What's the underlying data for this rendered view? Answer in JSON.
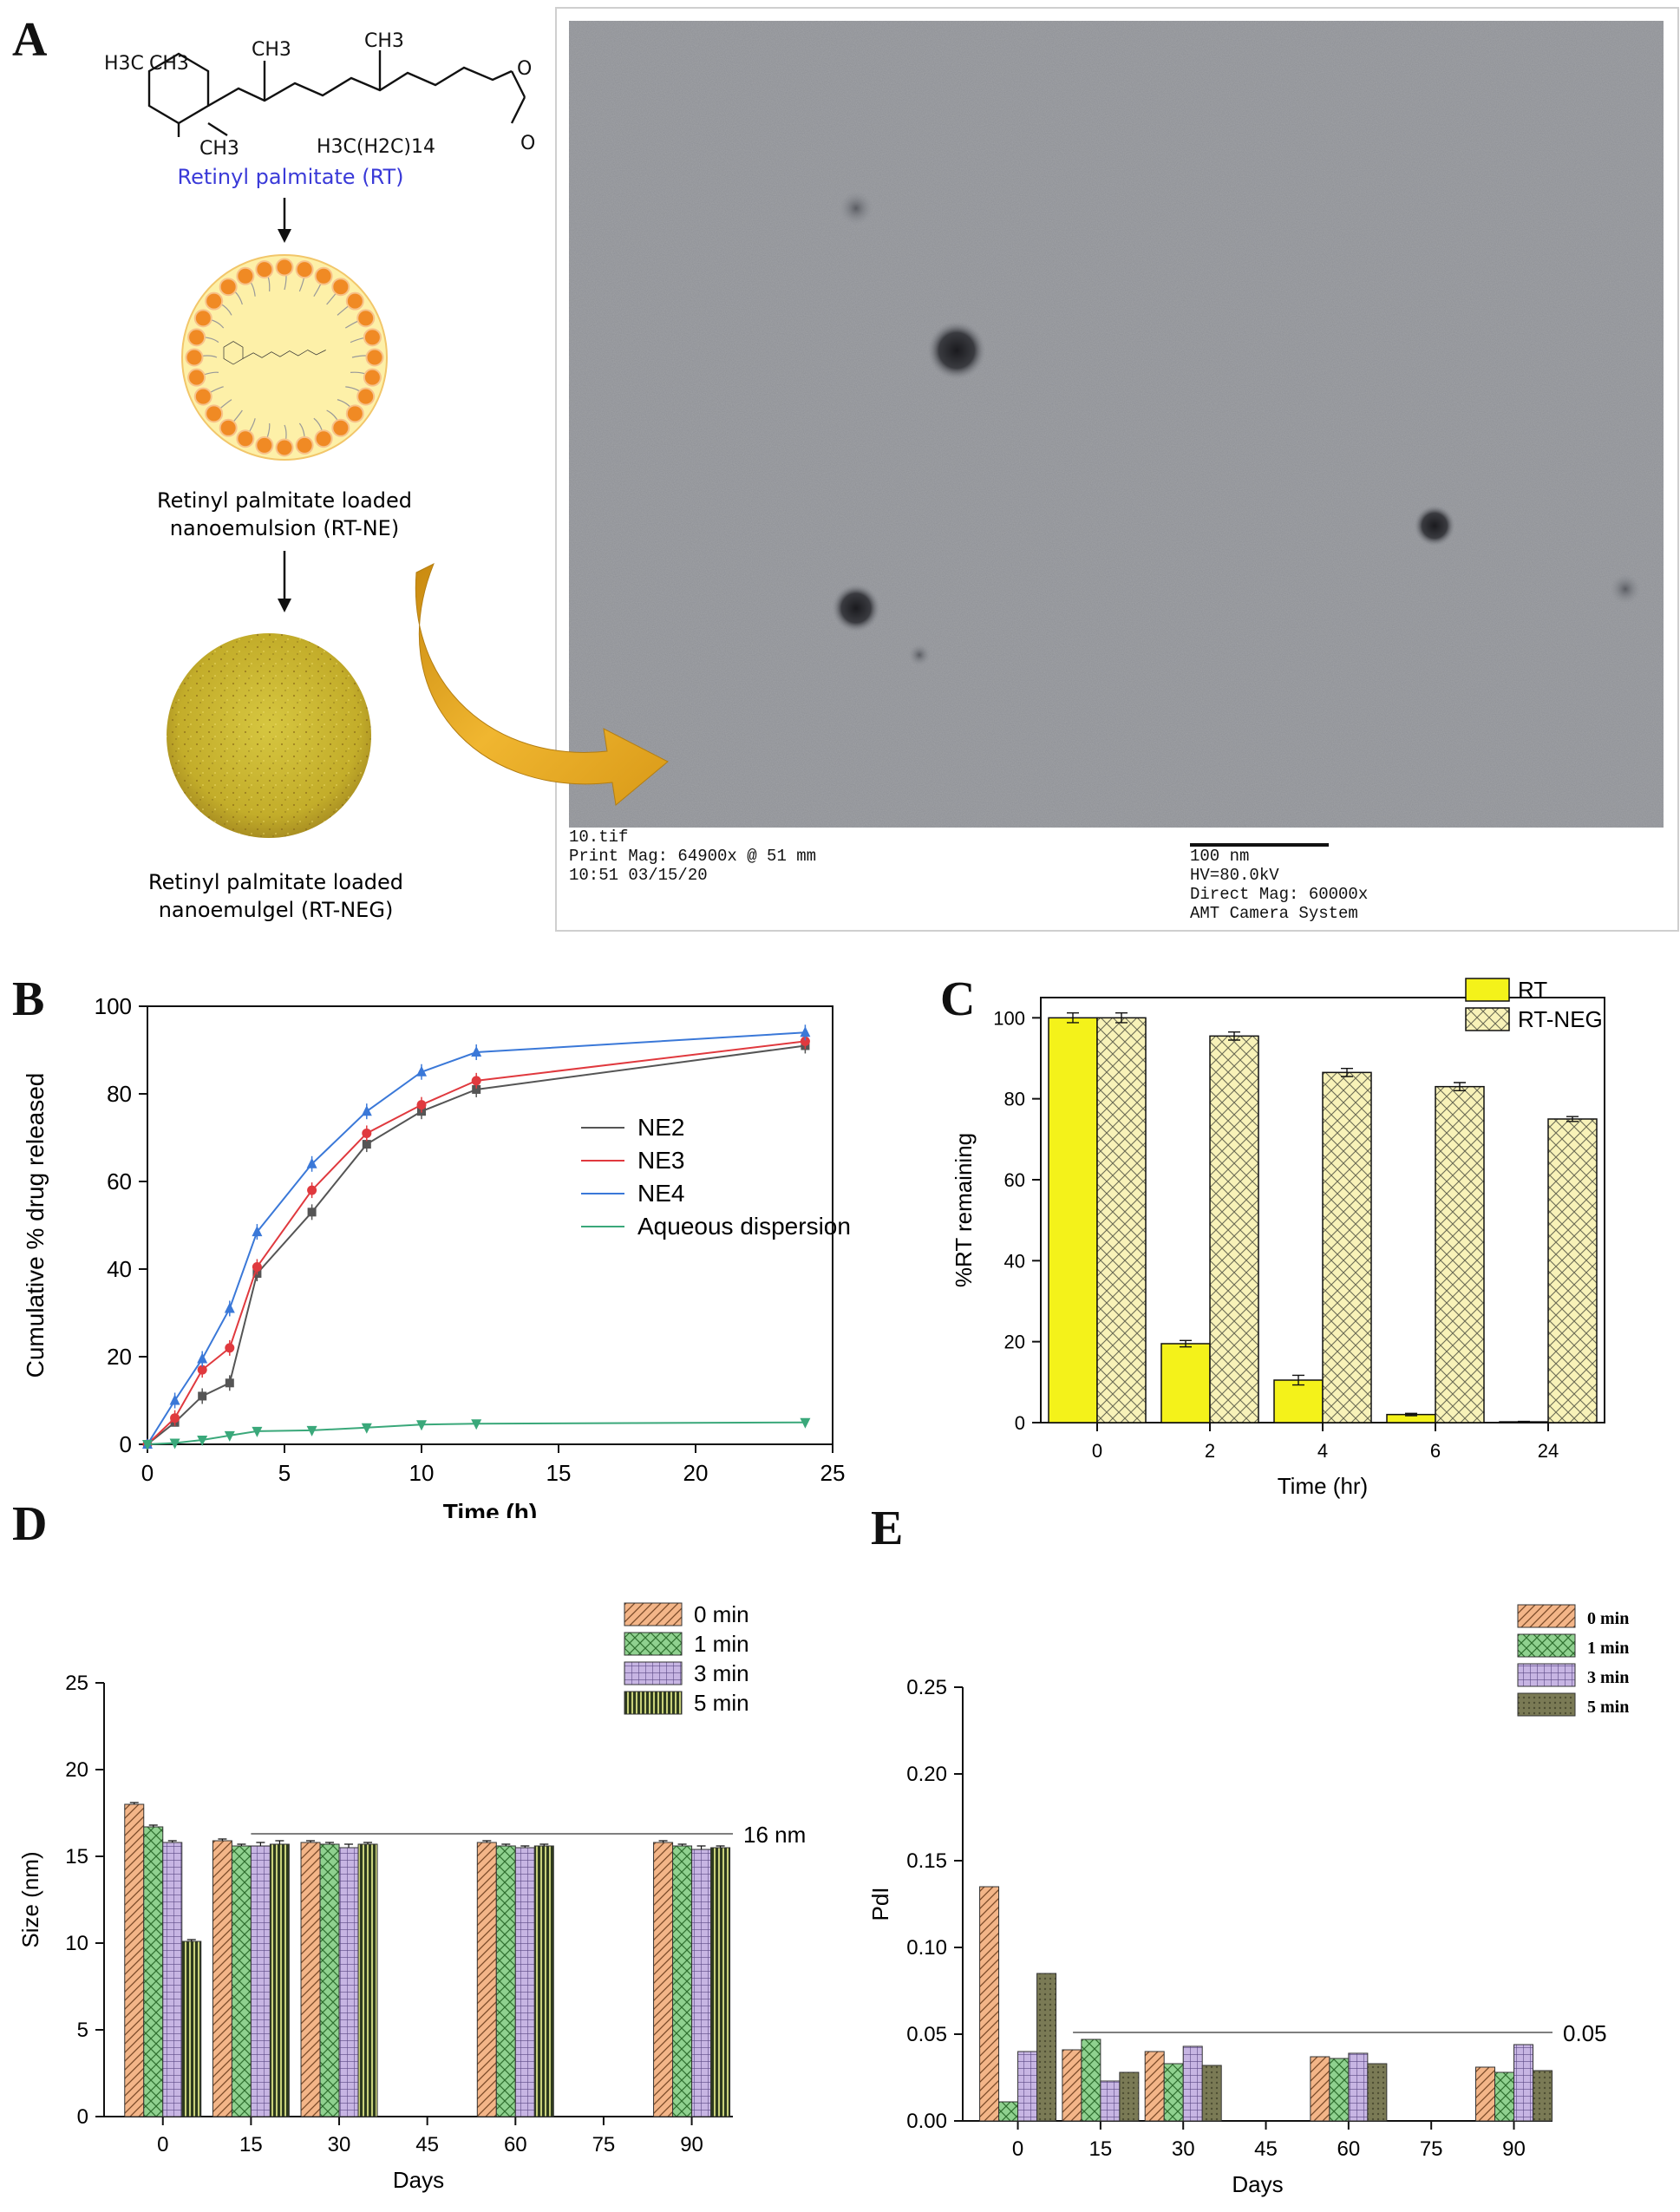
{
  "panels": {
    "A": "A",
    "B": "B",
    "C": "C",
    "D": "D",
    "E": "E"
  },
  "colors": {
    "nanoparticle_orange": "#f08a24",
    "core_yellow": "#fdf0a8",
    "gel_yellow": "#c9b530",
    "arrow_gold": "#e0a41c",
    "rt_label_blue": "#3a3ad8",
    "NE2": "#555555",
    "NE3": "#e0393e",
    "NE4": "#3a78d8",
    "aqueous": "#3aa87a",
    "rt_bar": "#f4f21a",
    "rtneg_bar": "#f8f2b8",
    "min0": "#f3b588",
    "min1": "#8fd18f",
    "min3": "#c7b5e3",
    "min5": "#2d3a1e",
    "min5_e": "#7a7a55"
  },
  "schematic": {
    "molecule_labels": {
      "h3c_left": "H3C",
      "ch3_top_left": "CH3",
      "ch3_mid": "CH3",
      "ch3_right": "CH3",
      "ch3_bottom": "CH3",
      "ester_chain": "H3C(H2C)14",
      "oxygen_top": "O",
      "oxygen_bottom": "O"
    },
    "rt_label": "Retinyl palmitate (RT)",
    "ne_label_line1": "Retinyl palmitate loaded",
    "ne_label_line2": "nanoemulsion (RT-NE)",
    "neg_label_line1": "Retinyl palmitate loaded",
    "neg_label_line2": "nanoemulgel (RT-NEG)"
  },
  "tem": {
    "file": "10.tif",
    "print_mag": "Print Mag: 64900x @ 51 mm",
    "timestamp": "10:51 03/15/20",
    "scale_bar": "100 nm",
    "hv": "HV=80.0kV",
    "direct_mag": "Direct Mag: 60000x",
    "camera": "AMT Camera System"
  },
  "chart_data": [
    {
      "panel": "B",
      "type": "line",
      "xlabel": "Time (h)",
      "ylabel": "Cumulative % drug released",
      "xlim": [
        0,
        25
      ],
      "ylim": [
        0,
        100
      ],
      "xticks": [
        0,
        5,
        10,
        15,
        20,
        25
      ],
      "yticks": [
        0,
        20,
        40,
        60,
        80,
        100
      ],
      "legend_position": "right",
      "series": [
        {
          "name": "NE2",
          "marker": "square",
          "x": [
            0,
            1,
            2,
            3,
            4,
            6,
            8,
            10,
            12,
            24
          ],
          "y": [
            0,
            5,
            11,
            14,
            39,
            53,
            68.5,
            76,
            81,
            91
          ]
        },
        {
          "name": "NE3",
          "marker": "circle",
          "x": [
            0,
            1,
            2,
            3,
            4,
            6,
            8,
            10,
            12,
            24
          ],
          "y": [
            0,
            6,
            17,
            22,
            40.5,
            58,
            71,
            77.5,
            83,
            92
          ]
        },
        {
          "name": "NE4",
          "marker": "triangle-up",
          "x": [
            0,
            1,
            2,
            3,
            4,
            6,
            8,
            10,
            12,
            24
          ],
          "y": [
            0,
            10,
            19.5,
            31,
            48.5,
            64,
            76,
            85,
            89.5,
            94
          ]
        },
        {
          "name": "Aqueous dispersion",
          "marker": "triangle-down",
          "x": [
            0,
            1,
            2,
            3,
            4,
            6,
            8,
            10,
            12,
            24
          ],
          "y": [
            0,
            0.3,
            1,
            2,
            3,
            3.2,
            3.8,
            4.5,
            4.7,
            5
          ]
        }
      ]
    },
    {
      "panel": "C",
      "type": "bar",
      "xlabel": "Time (hr)",
      "ylabel": "%RT remaining",
      "categories": [
        "0",
        "2",
        "4",
        "6",
        "24"
      ],
      "ylim": [
        0,
        105
      ],
      "yticks": [
        0,
        20,
        40,
        60,
        80,
        100
      ],
      "legend_position": "top-right",
      "series": [
        {
          "name": "RT",
          "values": [
            100,
            19.5,
            10.5,
            2,
            0.2
          ],
          "errors": [
            1.2,
            0.8,
            1.2,
            0.3,
            0.1
          ]
        },
        {
          "name": "RT-NEG",
          "values": [
            100,
            95.5,
            86.5,
            83,
            75
          ],
          "errors": [
            1.2,
            1.0,
            1.0,
            1.0,
            0.6
          ]
        }
      ]
    },
    {
      "panel": "D",
      "type": "bar",
      "xlabel": "Days",
      "ylabel": "Size (nm)",
      "xlim": [
        -10,
        97
      ],
      "ylim": [
        0,
        25
      ],
      "xticks": [
        0,
        15,
        30,
        45,
        60,
        75,
        90
      ],
      "yticks": [
        0,
        5,
        10,
        15,
        20,
        25
      ],
      "group_x": [
        0,
        15,
        30,
        60,
        90
      ],
      "reference_line": {
        "value": 16.3,
        "from": 15,
        "to": 97,
        "label": "16 nm"
      },
      "legend_position": "top-right",
      "series": [
        {
          "name": "0 min",
          "values": [
            18,
            15.9,
            15.8,
            15.8,
            15.8
          ],
          "errors": [
            0.1,
            0.1,
            0.1,
            0.1,
            0.1
          ]
        },
        {
          "name": "1 min",
          "values": [
            16.7,
            15.6,
            15.7,
            15.6,
            15.6
          ],
          "errors": [
            0.1,
            0.1,
            0.1,
            0.1,
            0.1
          ]
        },
        {
          "name": "3 min",
          "values": [
            15.8,
            15.6,
            15.5,
            15.5,
            15.4
          ],
          "errors": [
            0.1,
            0.2,
            0.2,
            0.1,
            0.2
          ]
        },
        {
          "name": "5 min",
          "values": [
            10.1,
            15.7,
            15.7,
            15.6,
            15.5
          ],
          "errors": [
            0.1,
            0.2,
            0.1,
            0.1,
            0.1
          ]
        }
      ]
    },
    {
      "panel": "E",
      "type": "bar",
      "xlabel": "Days",
      "ylabel": "PdI",
      "xlim": [
        -10,
        97
      ],
      "ylim": [
        0,
        0.25
      ],
      "xticks": [
        0,
        15,
        30,
        45,
        60,
        75,
        90
      ],
      "yticks": [
        0.0,
        0.05,
        0.1,
        0.15,
        0.2,
        0.25
      ],
      "ytick_labels": [
        "0.00",
        "0.05",
        "0.10",
        "0.15",
        "0.20",
        "0.25"
      ],
      "group_x": [
        0,
        15,
        30,
        60,
        90
      ],
      "reference_line": {
        "value": 0.051,
        "from": 10,
        "to": 97,
        "label": "0.05"
      },
      "legend_position": "top-right",
      "series": [
        {
          "name": "0 min",
          "values": [
            0.135,
            0.041,
            0.04,
            0.037,
            0.031
          ]
        },
        {
          "name": "1 min",
          "values": [
            0.011,
            0.047,
            0.033,
            0.036,
            0.028
          ]
        },
        {
          "name": "3 min",
          "values": [
            0.04,
            0.023,
            0.043,
            0.039,
            0.044
          ]
        },
        {
          "name": "5 min",
          "values": [
            0.085,
            0.028,
            0.032,
            0.033,
            0.029
          ]
        }
      ]
    }
  ]
}
